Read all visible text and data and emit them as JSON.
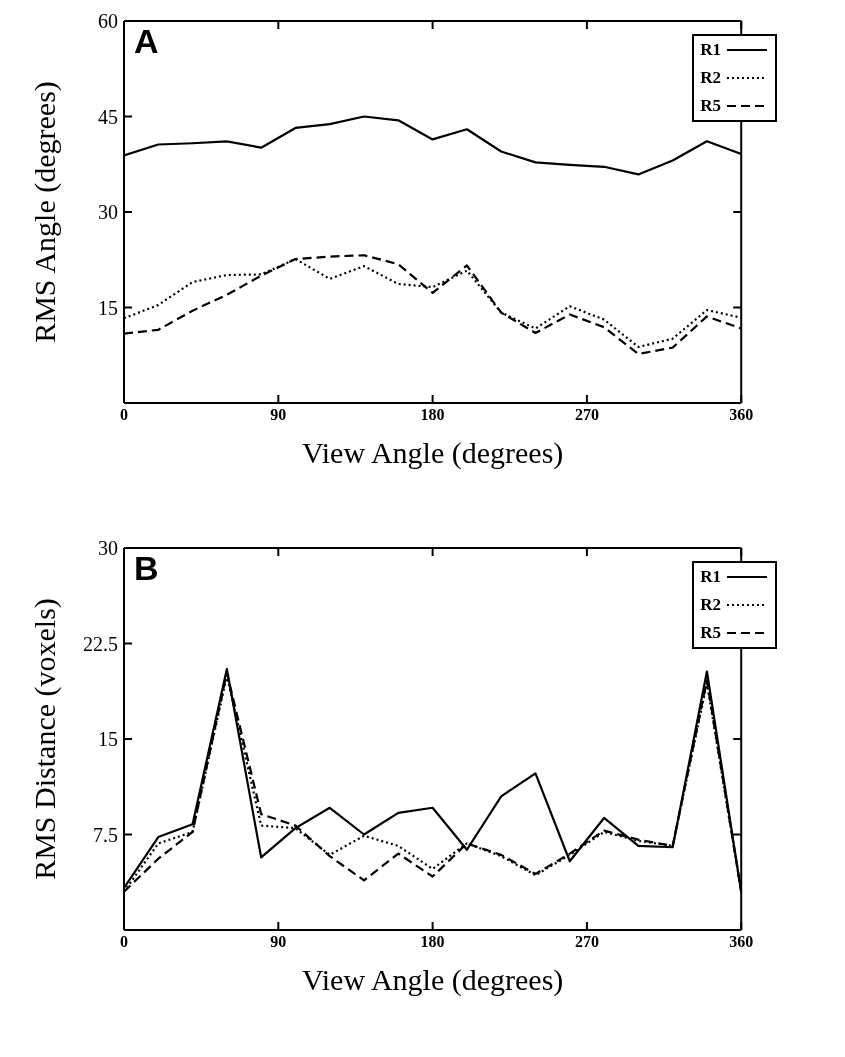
{
  "chart_data": [
    {
      "type": "line",
      "title": "A",
      "xlabel": "View Angle (degrees)",
      "ylabel": "RMS Angle (degrees)",
      "x": [
        0,
        20,
        40,
        60,
        80,
        100,
        120,
        140,
        160,
        180,
        200,
        220,
        240,
        260,
        280,
        300,
        320,
        340,
        360
      ],
      "series": [
        {
          "name": "R1",
          "color": "#000000",
          "line_style": "solid",
          "values": [
            38.9,
            40.6,
            40.8,
            41.1,
            40.1,
            43.2,
            43.8,
            45.0,
            44.4,
            41.4,
            43.0,
            39.5,
            37.8,
            37.4,
            37.1,
            35.9,
            38.1,
            41.1,
            39.1
          ]
        },
        {
          "name": "R2",
          "color": "#000000",
          "line_style": "dotted",
          "values": [
            13.3,
            15.4,
            19.0,
            20.1,
            20.2,
            22.6,
            19.5,
            21.5,
            18.7,
            18.2,
            20.8,
            14.2,
            11.7,
            15.2,
            13.1,
            8.8,
            10.1,
            14.6,
            13.4
          ]
        },
        {
          "name": "R5",
          "color": "#000000",
          "line_style": "dashed",
          "values": [
            10.9,
            11.5,
            14.5,
            17.0,
            20.0,
            22.6,
            23.0,
            23.2,
            21.8,
            17.3,
            21.6,
            14.2,
            11.0,
            13.9,
            11.9,
            7.7,
            8.7,
            13.6,
            11.7
          ]
        }
      ],
      "xlim": [
        0,
        360
      ],
      "xticks": [
        0,
        90,
        180,
        270,
        360
      ],
      "ylim": [
        0,
        60
      ],
      "yticks": [
        15,
        30,
        45,
        60
      ],
      "grid": false,
      "legend": "top right",
      "marker": "none"
    },
    {
      "type": "line",
      "title": "B",
      "xlabel": "View Angle (degrees)",
      "ylabel": "RMS Distance (voxels)",
      "x": [
        0,
        20,
        40,
        60,
        80,
        100,
        120,
        140,
        160,
        180,
        200,
        220,
        240,
        260,
        280,
        300,
        320,
        340,
        360
      ],
      "series": [
        {
          "name": "R1",
          "color": "#000000",
          "line_style": "solid",
          "values": [
            3.3,
            7.3,
            8.3,
            20.5,
            5.7,
            8.0,
            9.6,
            7.5,
            9.2,
            9.6,
            6.3,
            10.5,
            12.3,
            5.4,
            8.8,
            6.6,
            6.5,
            20.3,
            3.0
          ]
        },
        {
          "name": "R2",
          "color": "#000000",
          "line_style": "dotted",
          "values": [
            3.0,
            6.8,
            7.7,
            20.0,
            8.2,
            8.0,
            5.9,
            7.4,
            6.6,
            4.8,
            6.8,
            5.8,
            4.3,
            5.9,
            7.7,
            7.0,
            6.6,
            19.4,
            3.0
          ]
        },
        {
          "name": "R5",
          "color": "#000000",
          "line_style": "dashed",
          "values": [
            3.0,
            5.6,
            7.7,
            20.2,
            9.1,
            8.2,
            5.8,
            3.9,
            6.0,
            4.2,
            6.8,
            5.9,
            4.4,
            6.0,
            7.8,
            7.1,
            6.6,
            19.6,
            3.0
          ]
        }
      ],
      "xlim": [
        0,
        360
      ],
      "xticks": [
        0,
        90,
        180,
        270,
        360
      ],
      "ylim": [
        0,
        30
      ],
      "yticks": [
        7.5,
        15,
        22.5,
        30
      ],
      "grid": false,
      "legend": "top right",
      "marker": "none"
    }
  ]
}
